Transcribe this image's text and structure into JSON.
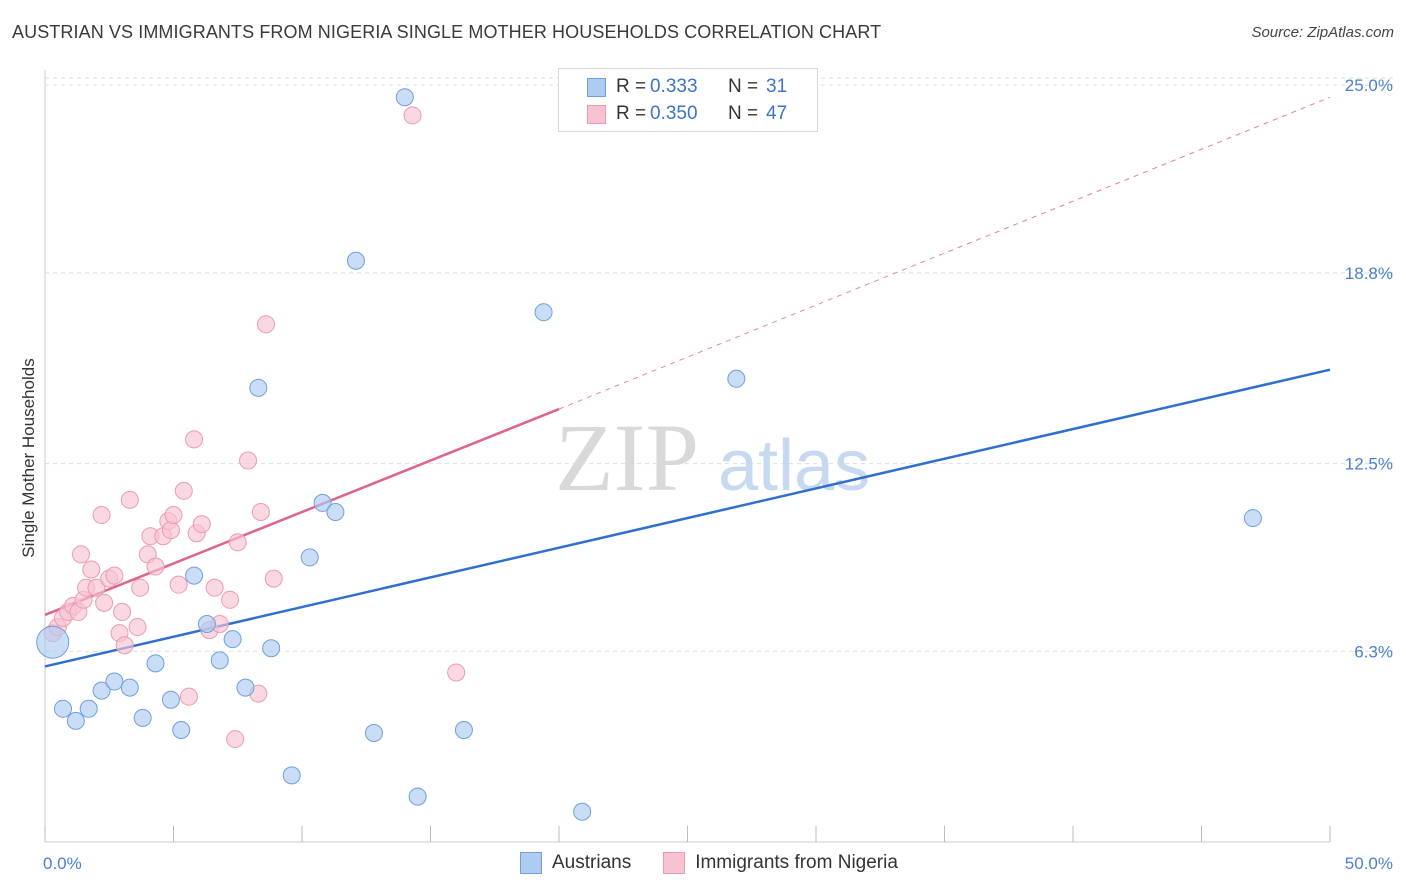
{
  "title": "AUSTRIAN VS IMMIGRANTS FROM NIGERIA SINGLE MOTHER HOUSEHOLDS CORRELATION CHART",
  "source": "Source: ZipAtlas.com",
  "watermark": {
    "zip": "ZIP",
    "atlas": "atlas"
  },
  "legend": {
    "rows": [
      {
        "r_label": "R =",
        "r_value": "0.333",
        "n_label": "N =",
        "n_value": "31"
      },
      {
        "r_label": "R =",
        "r_value": "0.350",
        "n_label": "N =",
        "n_value": "47"
      }
    ],
    "bottom": [
      "Austrians",
      "Immigrants from Nigeria"
    ]
  },
  "colors": {
    "austrians_fill": "#aecbf2",
    "austrians_stroke": "#6f9fdc",
    "austrians_line": "#2f6fd0",
    "nigeria_fill": "#f7c3d2",
    "nigeria_stroke": "#ec9ab3",
    "nigeria_line": "#e0638c",
    "grid": "#dddddd",
    "tick_text": "#4a7fd0"
  },
  "chart_data": {
    "type": "scatter",
    "title": "AUSTRIAN VS IMMIGRANTS FROM NIGERIA SINGLE MOTHER HOUSEHOLDS CORRELATION CHART",
    "xlabel": "",
    "ylabel": "Single Mother Households",
    "xlim": [
      0,
      50
    ],
    "ylim": [
      0,
      25.5
    ],
    "x_tick_labels": [
      "0.0%",
      "50.0%"
    ],
    "y_ticks": [
      6.3,
      12.5,
      18.8,
      25.0
    ],
    "y_tick_labels": [
      "6.3%",
      "12.5%",
      "18.8%",
      "25.0%"
    ],
    "grid": true,
    "series": [
      {
        "name": "Austrians",
        "r": 0.333,
        "n": 31,
        "points": [
          [
            0.3,
            6.6
          ],
          [
            0.7,
            4.4
          ],
          [
            1.2,
            4.0
          ],
          [
            1.7,
            4.4
          ],
          [
            2.2,
            5.0
          ],
          [
            2.7,
            5.3
          ],
          [
            3.3,
            5.1
          ],
          [
            3.8,
            4.1
          ],
          [
            4.3,
            5.9
          ],
          [
            4.9,
            4.7
          ],
          [
            5.3,
            3.7
          ],
          [
            5.8,
            8.8
          ],
          [
            6.3,
            7.2
          ],
          [
            6.8,
            6.0
          ],
          [
            7.3,
            6.7
          ],
          [
            7.8,
            5.1
          ],
          [
            8.3,
            15.0
          ],
          [
            8.8,
            6.4
          ],
          [
            9.6,
            2.2
          ],
          [
            10.3,
            9.4
          ],
          [
            10.8,
            11.2
          ],
          [
            11.3,
            10.9
          ],
          [
            12.1,
            19.2
          ],
          [
            12.8,
            3.6
          ],
          [
            14.0,
            24.6
          ],
          [
            14.5,
            1.5
          ],
          [
            16.3,
            3.7
          ],
          [
            19.4,
            17.5
          ],
          [
            20.9,
            1.0
          ],
          [
            26.9,
            15.3
          ],
          [
            47.0,
            10.7
          ]
        ],
        "trend": {
          "x": [
            0,
            50
          ],
          "y": [
            5.8,
            15.6
          ]
        }
      },
      {
        "name": "Immigrants from Nigeria",
        "r": 0.35,
        "n": 47,
        "points": [
          [
            0.3,
            6.9
          ],
          [
            0.5,
            7.1
          ],
          [
            0.7,
            7.4
          ],
          [
            0.9,
            7.6
          ],
          [
            1.1,
            7.8
          ],
          [
            1.3,
            7.6
          ],
          [
            1.5,
            8.0
          ],
          [
            1.4,
            9.5
          ],
          [
            1.6,
            8.4
          ],
          [
            1.8,
            9.0
          ],
          [
            2.0,
            8.4
          ],
          [
            2.2,
            10.8
          ],
          [
            2.3,
            7.9
          ],
          [
            2.5,
            8.7
          ],
          [
            2.7,
            8.8
          ],
          [
            2.9,
            6.9
          ],
          [
            3.0,
            7.6
          ],
          [
            3.1,
            6.5
          ],
          [
            3.3,
            11.3
          ],
          [
            3.6,
            7.1
          ],
          [
            3.7,
            8.4
          ],
          [
            4.0,
            9.5
          ],
          [
            4.1,
            10.1
          ],
          [
            4.3,
            9.1
          ],
          [
            4.6,
            10.1
          ],
          [
            4.8,
            10.6
          ],
          [
            4.9,
            10.3
          ],
          [
            5.0,
            10.8
          ],
          [
            5.2,
            8.5
          ],
          [
            5.4,
            11.6
          ],
          [
            5.6,
            4.8
          ],
          [
            5.8,
            13.3
          ],
          [
            5.9,
            10.2
          ],
          [
            6.1,
            10.5
          ],
          [
            6.4,
            7.0
          ],
          [
            6.6,
            8.4
          ],
          [
            6.8,
            7.2
          ],
          [
            7.2,
            8.0
          ],
          [
            7.4,
            3.4
          ],
          [
            7.5,
            9.9
          ],
          [
            7.9,
            12.6
          ],
          [
            8.3,
            4.9
          ],
          [
            8.4,
            10.9
          ],
          [
            8.6,
            17.1
          ],
          [
            8.9,
            8.7
          ],
          [
            14.3,
            24.0
          ],
          [
            16.0,
            5.6
          ]
        ],
        "trend": {
          "x": [
            0,
            20
          ],
          "y": [
            7.5,
            14.3
          ]
        },
        "trend_extension_dashed": {
          "x": [
            20,
            50
          ],
          "y": [
            14.3,
            24.6
          ]
        }
      }
    ]
  }
}
